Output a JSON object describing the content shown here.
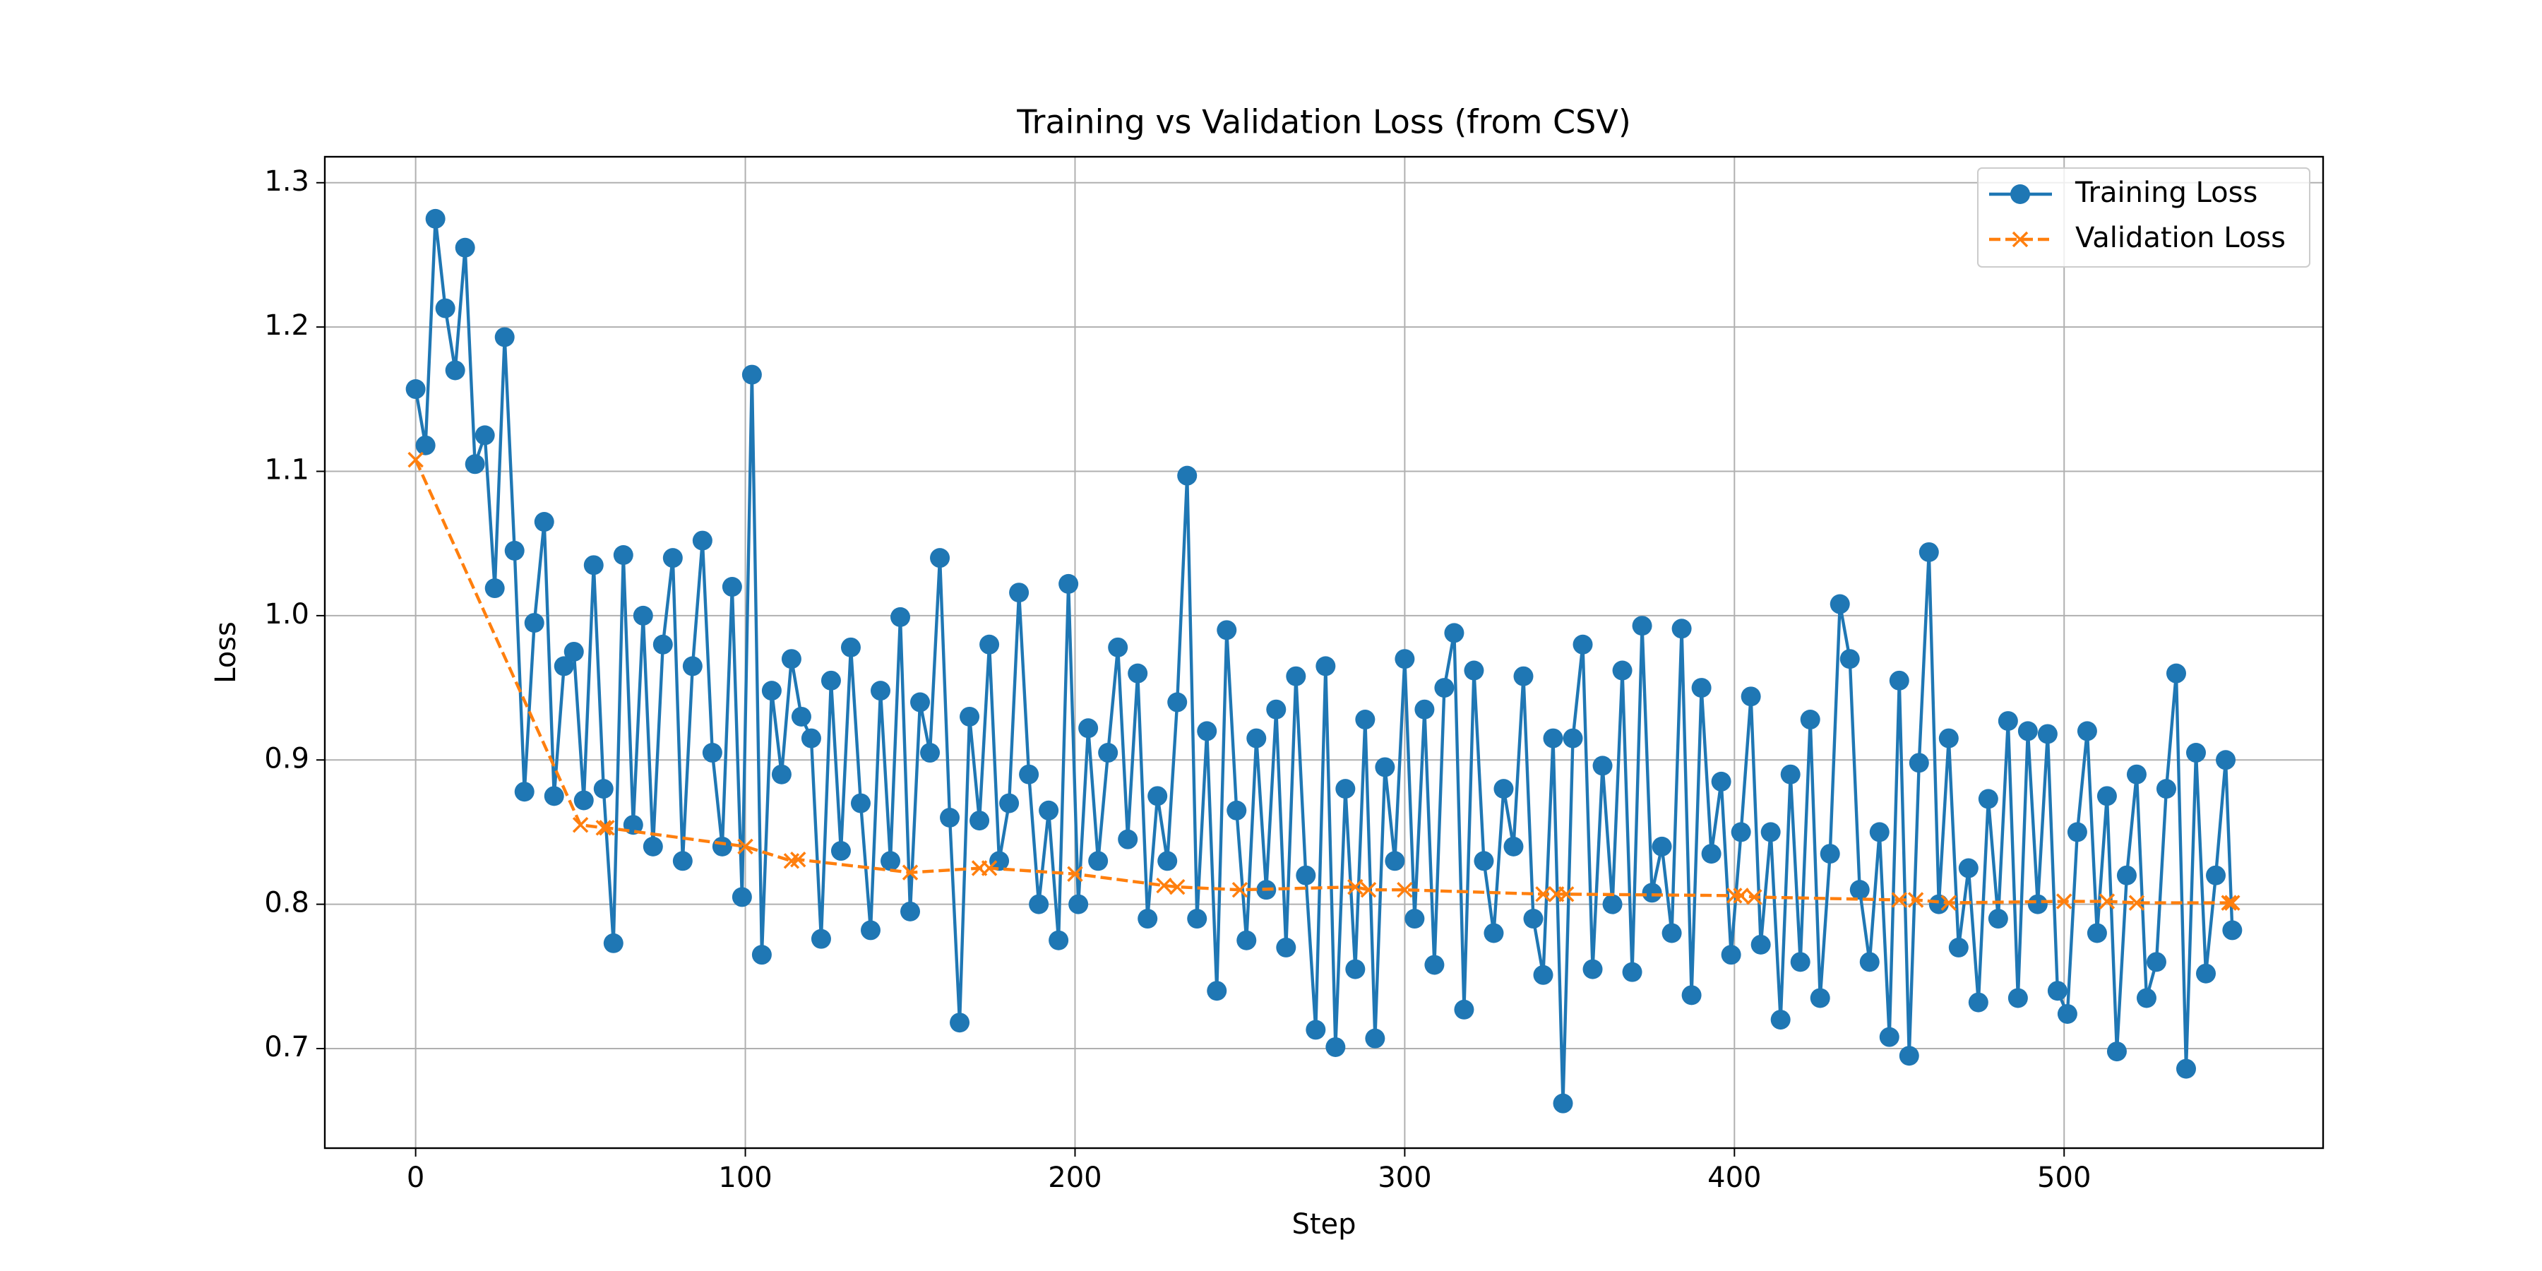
{
  "chart_data": {
    "type": "line",
    "title": "Training vs Validation Loss (from CSV)",
    "xlabel": "Step",
    "ylabel": "Loss",
    "xlim": [
      -27.55,
      578.55
    ],
    "ylim": [
      0.631,
      1.318
    ],
    "xticks": [
      0,
      100,
      200,
      300,
      400,
      500
    ],
    "yticks": [
      0.7,
      0.8,
      0.9,
      {
        "value": 1,
        "label": "1.0"
      },
      1.1,
      1.2,
      1.3
    ],
    "grid": true,
    "legend": "upper right",
    "series": [
      {
        "name": "Training Loss",
        "color": "#1f77b4",
        "marker": "o",
        "linestyle": "solid",
        "x": [
          0,
          3,
          6,
          9,
          12,
          15,
          18,
          21,
          24,
          27,
          30,
          33,
          36,
          39,
          42,
          45,
          48,
          51,
          54,
          57,
          60,
          63,
          66,
          69,
          72,
          75,
          78,
          81,
          84,
          87,
          90,
          93,
          96,
          99,
          102,
          105,
          108,
          111,
          114,
          117,
          120,
          123,
          126,
          129,
          132,
          135,
          138,
          141,
          144,
          147,
          150,
          153,
          156,
          159,
          162,
          165,
          168,
          171,
          174,
          177,
          180,
          183,
          186,
          189,
          192,
          195,
          198,
          201,
          204,
          207,
          210,
          213,
          216,
          219,
          222,
          225,
          228,
          231,
          234,
          237,
          240,
          243,
          246,
          249,
          252,
          255,
          258,
          261,
          264,
          267,
          270,
          273,
          276,
          279,
          282,
          285,
          288,
          291,
          294,
          297,
          300,
          303,
          306,
          309,
          312,
          315,
          318,
          321,
          324,
          327,
          330,
          333,
          336,
          339,
          342,
          345,
          348,
          351,
          354,
          357,
          360,
          363,
          366,
          369,
          372,
          375,
          378,
          381,
          384,
          387,
          390,
          393,
          396,
          399,
          402,
          405,
          408,
          411,
          414,
          417,
          420,
          423,
          426,
          429,
          432,
          435,
          438,
          441,
          444,
          447,
          450,
          453,
          456,
          459,
          462,
          465,
          468,
          471,
          474,
          477,
          480,
          483,
          486,
          489,
          492,
          495,
          498,
          501,
          504,
          507,
          510,
          513,
          516,
          519,
          522,
          525,
          528,
          531,
          534,
          537,
          540,
          543,
          546,
          549,
          551
        ],
        "values": [
          1.157,
          1.118,
          1.275,
          1.213,
          1.17,
          1.255,
          1.105,
          1.125,
          1.019,
          1.193,
          1.045,
          0.878,
          0.995,
          1.065,
          0.875,
          0.965,
          0.975,
          0.872,
          1.035,
          0.88,
          0.773,
          1.042,
          0.855,
          1.0,
          0.84,
          0.98,
          1.04,
          0.83,
          0.965,
          1.052,
          0.905,
          0.84,
          1.02,
          0.805,
          1.167,
          0.765,
          0.948,
          0.89,
          0.97,
          0.93,
          0.915,
          0.776,
          0.955,
          0.837,
          0.978,
          0.87,
          0.782,
          0.948,
          0.83,
          0.999,
          0.795,
          0.94,
          0.905,
          1.04,
          0.86,
          0.718,
          0.93,
          0.858,
          0.98,
          0.83,
          0.87,
          1.016,
          0.89,
          0.8,
          0.865,
          0.775,
          1.022,
          0.8,
          0.922,
          0.83,
          0.905,
          0.978,
          0.845,
          0.96,
          0.79,
          0.875,
          0.83,
          0.94,
          1.097,
          0.79,
          0.92,
          0.74,
          0.99,
          0.865,
          0.775,
          0.915,
          0.81,
          0.935,
          0.77,
          0.958,
          0.82,
          0.713,
          0.965,
          0.701,
          0.88,
          0.755,
          0.928,
          0.707,
          0.895,
          0.83,
          0.97,
          0.79,
          0.935,
          0.758,
          0.95,
          0.988,
          0.727,
          0.962,
          0.83,
          0.78,
          0.88,
          0.84,
          0.958,
          0.79,
          0.751,
          0.915,
          0.662,
          0.915,
          0.98,
          0.755,
          0.896,
          0.8,
          0.962,
          0.753,
          0.993,
          0.808,
          0.84,
          0.78,
          0.991,
          0.737,
          0.95,
          0.835,
          0.885,
          0.765,
          0.85,
          0.944,
          0.772,
          0.85,
          0.72,
          0.89,
          0.76,
          0.928,
          0.735,
          0.835,
          1.008,
          0.97,
          0.81,
          0.76,
          0.85,
          0.708,
          0.955,
          0.695,
          0.898,
          1.044,
          0.8,
          0.915,
          0.77,
          0.825,
          0.732,
          0.873,
          0.79,
          0.927,
          0.735,
          0.92,
          0.8,
          0.918,
          0.74,
          0.724,
          0.85,
          0.92,
          0.78,
          0.875,
          0.698,
          0.82,
          0.89,
          0.735,
          0.76,
          0.88,
          0.96,
          0.686,
          0.905,
          0.752,
          0.82,
          0.9,
          0.782
        ]
      },
      {
        "name": "Validation Loss",
        "color": "#ff7f0e",
        "marker": "x",
        "linestyle": "dashed",
        "x": [
          0,
          50,
          57,
          58,
          100,
          114,
          116,
          150,
          171,
          174,
          200,
          227,
          231,
          250,
          285,
          289,
          300,
          342,
          346,
          349,
          400,
          402,
          406,
          450,
          455,
          465,
          500,
          513,
          522,
          550,
          551
        ],
        "values": [
          1.108,
          0.855,
          0.853,
          0.853,
          0.84,
          0.83,
          0.831,
          0.822,
          0.825,
          0.825,
          0.821,
          0.813,
          0.812,
          0.81,
          0.812,
          0.81,
          0.81,
          0.807,
          0.807,
          0.807,
          0.806,
          0.806,
          0.805,
          0.803,
          0.803,
          0.801,
          0.802,
          0.802,
          0.801,
          0.801,
          0.801
        ]
      }
    ]
  }
}
